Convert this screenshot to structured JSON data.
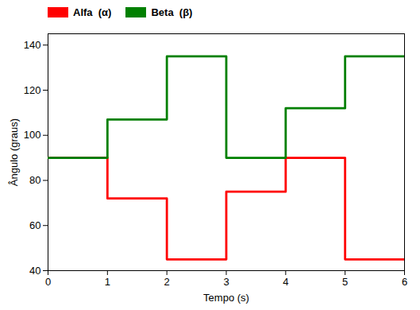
{
  "chart_data": {
    "type": "line",
    "xlabel": "Tempo (s)",
    "ylabel": "Ângulo (graus)",
    "x": [
      0,
      1,
      1,
      2,
      2,
      3,
      3,
      4,
      4,
      5,
      5,
      6
    ],
    "series": [
      {
        "name": "Alfa  (α)",
        "color": "#ff0000",
        "values": [
          90,
          90,
          72,
          72,
          45,
          45,
          75,
          75,
          90,
          90,
          45,
          45
        ]
      },
      {
        "name": "Beta  (β)",
        "color": "#008000",
        "values": [
          90,
          90,
          107,
          107,
          135,
          135,
          90,
          90,
          112,
          112,
          135,
          135
        ]
      }
    ],
    "xlim": [
      0,
      6
    ],
    "ylim": [
      40,
      145
    ],
    "xticks": [
      0,
      1,
      2,
      3,
      4,
      5,
      6
    ],
    "yticks": [
      40,
      60,
      80,
      100,
      120,
      140
    ],
    "legend": "upper left",
    "grid": false
  }
}
